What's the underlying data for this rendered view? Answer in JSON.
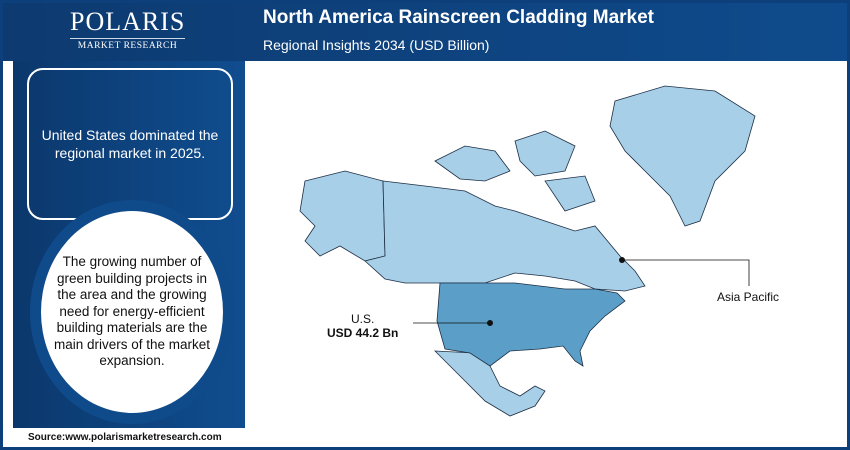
{
  "logo": {
    "name": "POLARIS",
    "sub": "MARKET RESEARCH"
  },
  "header": {
    "title": "North America Rainscreen Cladding Market",
    "subtitle": "Regional Insights 2034 (USD Billion)"
  },
  "sidebar": {
    "highlight": "United States dominated the regional market in 2025.",
    "drivers": "The growing number of green building projects in the area and the growing need for energy-efficient building materials are the main drivers of the market expansion."
  },
  "map": {
    "us_label": "U.S.",
    "us_value": "USD 44.2 Bn",
    "callout_label": "Asia Pacific",
    "colors": {
      "land": "#a7cfe8",
      "us": "#5b9fc9",
      "border": "#1e2f44"
    }
  },
  "footer": {
    "source": "Source:www.polarismarketresearch.com"
  }
}
